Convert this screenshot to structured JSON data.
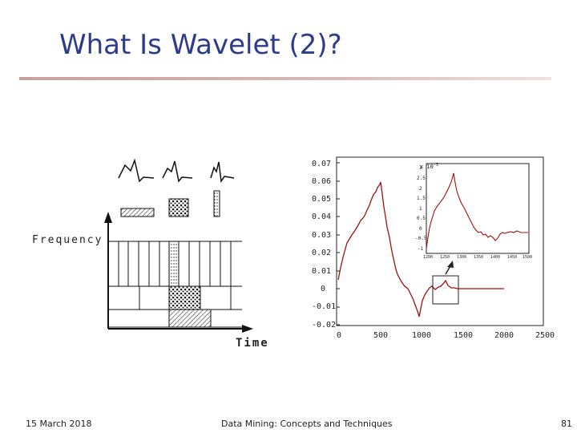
{
  "slide": {
    "title": "What Is Wavelet (2)?",
    "footer_date": "15 March 2018",
    "footer_center": "Data Mining: Concepts and Techniques",
    "page_number": "81"
  },
  "tiling": {
    "y_axis_label": "Frequency",
    "x_axis_label": "Time"
  },
  "signal_plot": {
    "y_ticks": [
      "0.07",
      "0.06",
      "0.05",
      "0.04",
      "0.03",
      "0.02",
      "0.01",
      "0",
      "-0.01",
      "-0.02"
    ],
    "x_ticks": [
      "0",
      "500",
      "1000",
      "1500",
      "2000",
      "2500"
    ],
    "inset": {
      "exponent": "x 10",
      "exponent_power": "-3",
      "y_ticks": [
        "3",
        "2.5",
        "2",
        "1.5",
        "1",
        "0.5",
        "0",
        "-0.5",
        "-1"
      ],
      "x_ticks": [
        "1200",
        "1250",
        "1300",
        "1350",
        "1400",
        "1450",
        "1500"
      ]
    }
  },
  "colors": {
    "title": "#2e3a8c",
    "signal": "#a01010"
  }
}
